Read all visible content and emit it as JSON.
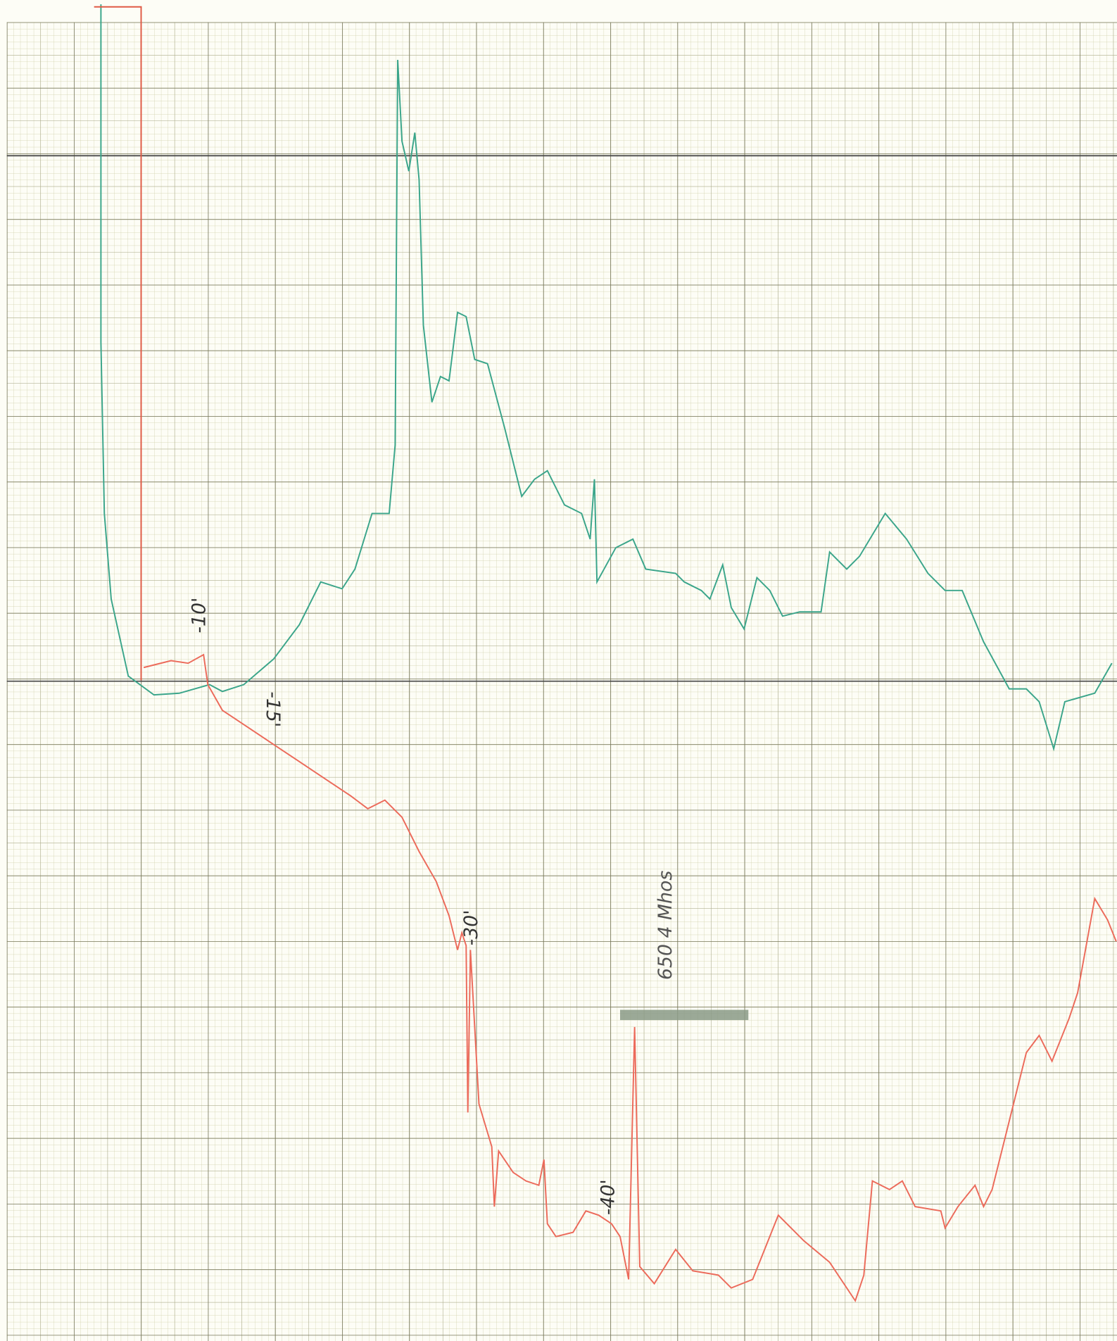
{
  "annotations": [
    "-10'",
    "-15'",
    "-30'",
    "-40'",
    "650 4 Mhos"
  ]
}
